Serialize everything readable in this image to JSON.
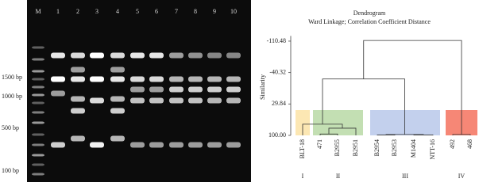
{
  "gel": {
    "lanes": [
      "M",
      "1",
      "2",
      "3",
      "4",
      "5",
      "6",
      "7",
      "8",
      "9",
      "10"
    ],
    "size_labels": [
      "1500 bp",
      "1000 bp",
      "500 bp",
      "100 bp"
    ]
  },
  "chart_data": {
    "type": "dendrogram",
    "title": "Dendrogram",
    "subtitle": "Ward Linkage; Correlation Coefficient Distance",
    "y_label": "Similarity",
    "leaves": [
      "BLT-18",
      "471",
      "B2955",
      "B2951",
      "B2954",
      "B2953",
      "M1404",
      "NTT-16",
      "492",
      "468"
    ],
    "merges": [
      {
        "children": [
          1,
          2
        ],
        "height": 97
      },
      {
        "children": [
          10,
          3
        ],
        "height": 84
      },
      {
        "children": [
          0,
          11
        ],
        "height": 75
      },
      {
        "children": [
          4,
          5
        ],
        "height": 99
      },
      {
        "children": [
          6,
          7
        ],
        "height": 99
      },
      {
        "children": [
          13,
          14
        ],
        "height": 98
      },
      {
        "children": [
          8,
          9
        ],
        "height": 98
      },
      {
        "children": [
          12,
          15
        ],
        "height": -26
      },
      {
        "children": [
          17,
          16
        ],
        "height": -112
      }
    ],
    "groups": [
      {
        "name": "I",
        "leaves": [
          0,
          0
        ],
        "color": "#fbe3a6"
      },
      {
        "name": "II",
        "leaves": [
          1,
          3
        ],
        "color": "#b9d9a6"
      },
      {
        "name": "III",
        "leaves": [
          4,
          7
        ],
        "color": "#b9c8ea"
      },
      {
        "name": "IV",
        "leaves": [
          8,
          9
        ],
        "color": "#f4725e"
      }
    ],
    "ylim": [
      100,
      -115
    ],
    "yticks": [
      -110.48,
      -40.32,
      29.84,
      {
        "value": 100,
        "label": "100.00"
      }
    ]
  }
}
